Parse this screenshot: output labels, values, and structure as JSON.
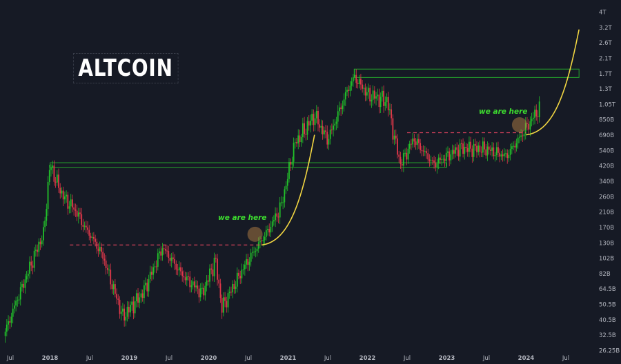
{
  "title": "ALTCOIN",
  "annotations": [
    {
      "text": "we are here"
    },
    {
      "text": "we are here"
    }
  ],
  "colors": {
    "background": "#161a25",
    "up_candle": "#22c12a",
    "down_candle": "#e0384a",
    "projection_curve": "#f2d642",
    "resistance_dashed": "#d9425c",
    "zone_border": "#25a52c",
    "annotation_text": "#3ddc2f",
    "axis_text": "#b2b5be"
  },
  "chart_data": {
    "type": "candlestick",
    "title": "ALTCOIN",
    "yscale": "log",
    "x_tick_labels": [
      "Jul",
      "2018",
      "Jul",
      "2019",
      "Jul",
      "2020",
      "Jul",
      "2021",
      "Jul",
      "2022",
      "Jul",
      "2023",
      "Jul",
      "2024",
      "Jul"
    ],
    "y_tick_labels": [
      "4T",
      "3.2T",
      "2.6T",
      "2.1T",
      "1.7T",
      "1.3T",
      "1.05T",
      "850B",
      "690B",
      "540B",
      "420B",
      "340B",
      "260B",
      "210B",
      "170B",
      "130B",
      "102B",
      "82B",
      "64.5B",
      "50.5B",
      "40.5B",
      "32.5B",
      "26.25B"
    ],
    "ylim_billions": [
      26.25,
      4000
    ],
    "approx_close_path": [
      {
        "date": "2017-06",
        "value": 32
      },
      {
        "date": "2017-09",
        "value": 70
      },
      {
        "date": "2017-12",
        "value": 150
      },
      {
        "date": "2018-01",
        "value": 430
      },
      {
        "date": "2018-03",
        "value": 260
      },
      {
        "date": "2018-05",
        "value": 210
      },
      {
        "date": "2018-07",
        "value": 150
      },
      {
        "date": "2018-09",
        "value": 105
      },
      {
        "date": "2018-12",
        "value": 42
      },
      {
        "date": "2019-03",
        "value": 60
      },
      {
        "date": "2019-06",
        "value": 120
      },
      {
        "date": "2019-09",
        "value": 80
      },
      {
        "date": "2019-12",
        "value": 60
      },
      {
        "date": "2020-02",
        "value": 100
      },
      {
        "date": "2020-03",
        "value": 48
      },
      {
        "date": "2020-06",
        "value": 85
      },
      {
        "date": "2020-09",
        "value": 135
      },
      {
        "date": "2020-12",
        "value": 230
      },
      {
        "date": "2021-02",
        "value": 600
      },
      {
        "date": "2021-05",
        "value": 900
      },
      {
        "date": "2021-07",
        "value": 640
      },
      {
        "date": "2021-11",
        "value": 1600
      },
      {
        "date": "2022-01",
        "value": 1200
      },
      {
        "date": "2022-04",
        "value": 1100
      },
      {
        "date": "2022-06",
        "value": 430
      },
      {
        "date": "2022-08",
        "value": 650
      },
      {
        "date": "2022-11",
        "value": 430
      },
      {
        "date": "2023-03",
        "value": 560
      },
      {
        "date": "2023-07",
        "value": 550
      },
      {
        "date": "2023-10",
        "value": 490
      },
      {
        "date": "2024-01",
        "value": 760
      },
      {
        "date": "2024-03",
        "value": 990
      }
    ],
    "horizontal_zones": [
      {
        "from": "2018-01",
        "to": "2023-01",
        "low": 410,
        "high": 440
      },
      {
        "from": "2021-11",
        "to": "2024-09",
        "low": 1580,
        "high": 1800
      }
    ],
    "dashed_resistance_lines": [
      {
        "from": "2018-04",
        "to": "2020-09",
        "value": 125
      },
      {
        "from": "2022-07",
        "to": "2024-01",
        "value": 710
      }
    ],
    "projection_curves": [
      {
        "from": "2020-09",
        "to": "2021-05",
        "start_value": 125,
        "end_value": 690
      },
      {
        "from": "2024-01",
        "to": "2024-09",
        "start_value": 690,
        "end_value": 3100
      }
    ],
    "highlight_circles": [
      {
        "date": "2020-08",
        "value": 150
      },
      {
        "date": "2023-12",
        "value": 790
      }
    ]
  }
}
